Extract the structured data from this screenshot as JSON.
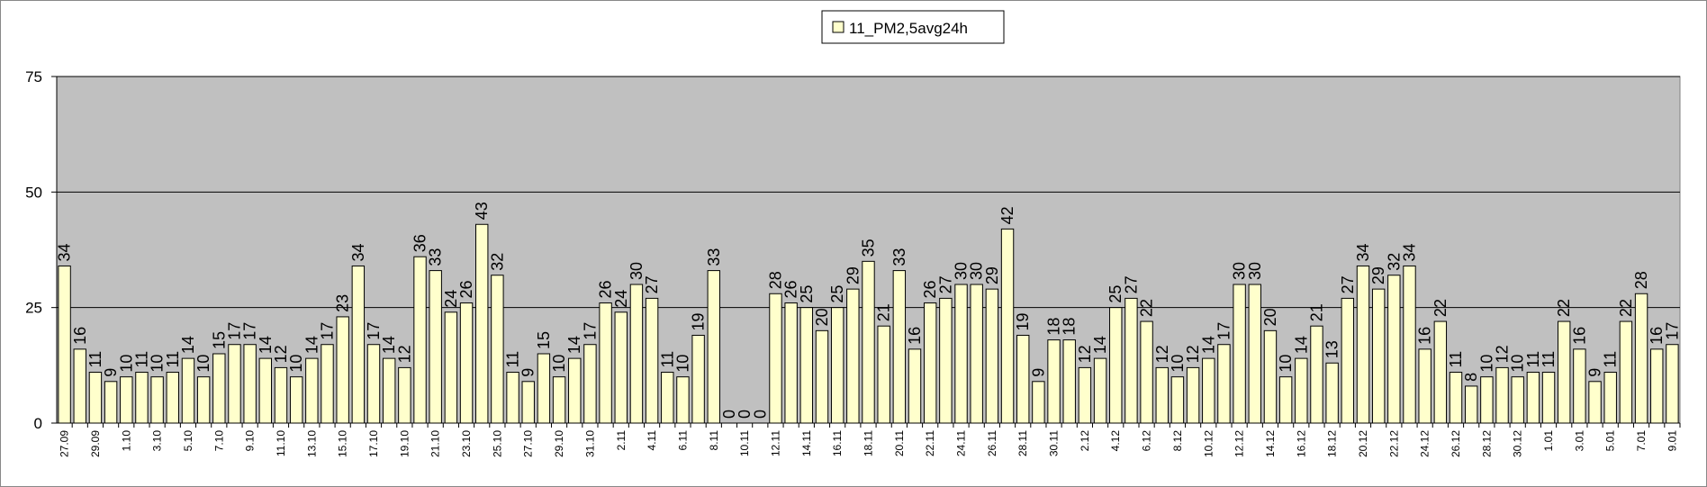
{
  "chart_data": {
    "type": "bar",
    "categories": [
      "27.09",
      null,
      "29.09",
      null,
      "1.10",
      null,
      "3.10",
      null,
      "5.10",
      null,
      "7.10",
      null,
      "9.10",
      null,
      "11.10",
      null,
      "13.10",
      null,
      "15.10",
      null,
      "17.10",
      null,
      "19.10",
      null,
      "21.10",
      null,
      "23.10",
      null,
      "25.10",
      null,
      "27.10",
      null,
      "29.10",
      null,
      "31.10",
      null,
      "2.11",
      null,
      "4.11",
      null,
      "6.11",
      null,
      "8.11",
      null,
      "10.11",
      null,
      "12.11",
      null,
      "14.11",
      null,
      "16.11",
      null,
      "18.11",
      null,
      "20.11",
      null,
      "22.11",
      null,
      "24.11",
      null,
      "26.11",
      null,
      "28.11",
      null,
      "30.11",
      null,
      "2.12",
      null,
      "4.12",
      null,
      "6.12",
      null,
      "8.12",
      null,
      "10.12",
      null,
      "12.12",
      null,
      "14.12",
      null,
      "16.12",
      null,
      "18.12",
      null,
      "20.12",
      null,
      "22.12",
      null,
      "24.12",
      null,
      "26.12",
      null,
      "28.12",
      null,
      "30.12",
      null,
      "1.01",
      null,
      "3.01",
      null,
      "5.01",
      null,
      "7.01",
      null,
      "9.01"
    ],
    "series": [
      {
        "name": "11_PM2,5avg24h",
        "color": "#ffffcc",
        "values": [
          34,
          16,
          11,
          9,
          10,
          11,
          10,
          11,
          14,
          10,
          15,
          17,
          17,
          14,
          12,
          10,
          14,
          17,
          23,
          34,
          17,
          14,
          12,
          36,
          33,
          24,
          26,
          43,
          32,
          11,
          9,
          15,
          10,
          14,
          17,
          26,
          24,
          30,
          27,
          11,
          10,
          19,
          33,
          0,
          0,
          0,
          28,
          26,
          25,
          20,
          25,
          29,
          35,
          21,
          33,
          16,
          26,
          27,
          30,
          30,
          29,
          42,
          19,
          9,
          18,
          18,
          12,
          14,
          25,
          27,
          22,
          12,
          10,
          12,
          14,
          17,
          30,
          30,
          20,
          10,
          14,
          21,
          13,
          27,
          34,
          29,
          32,
          34,
          16,
          22,
          11,
          8,
          10,
          12,
          10,
          11,
          11,
          22,
          16,
          9,
          11,
          22,
          28,
          16,
          17
        ]
      }
    ],
    "ylim": [
      0,
      75
    ],
    "yticks": [
      0,
      25,
      50,
      75
    ],
    "grid": true,
    "legend": "top"
  }
}
